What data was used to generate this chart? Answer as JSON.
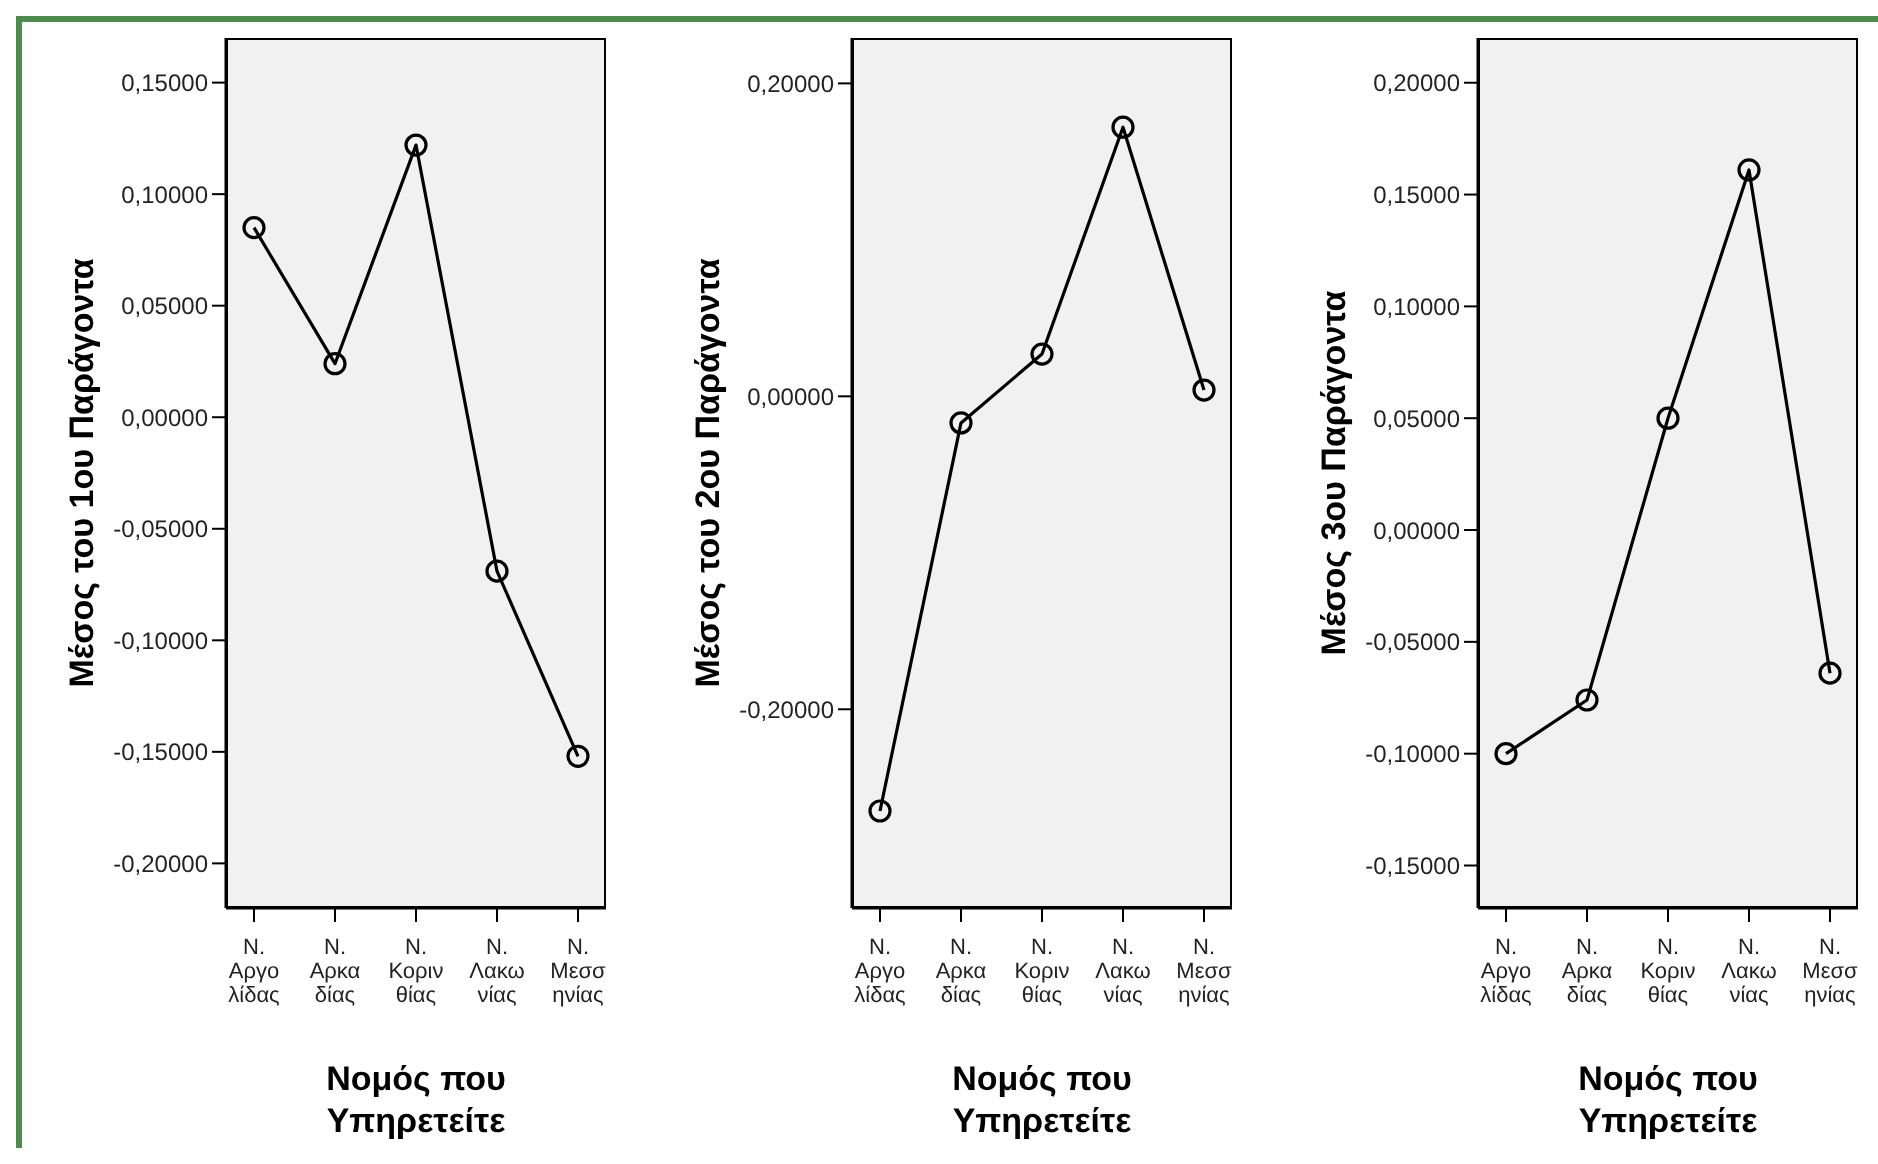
{
  "chart_data": [
    {
      "type": "line",
      "categories": [
        "Ν.\nΑργο\nλίδας",
        "Ν.\nΑρκα\nδίας",
        "Ν.\nΚοριν\nθίας",
        "Ν.\nΛακω\nνίας",
        "Ν.\nΜεσσ\nηνίας"
      ],
      "xlabel": "Νομός που Υπηρετείτε",
      "ylabel": "Μέσος του 1ου Παράγοντα",
      "series": [
        {
          "color": "#000000",
          "values": [
            0.085,
            0.024,
            0.122,
            -0.069,
            -0.152
          ]
        }
      ],
      "ylim": [
        -0.22,
        0.17
      ],
      "yticks": [
        {
          "value": -0.2,
          "label": "-0,20000"
        },
        {
          "value": -0.15,
          "label": "-0,15000"
        },
        {
          "value": -0.1,
          "label": "-0,10000"
        },
        {
          "value": -0.05,
          "label": "-0,05000"
        },
        {
          "value": 0,
          "label": "0,00000"
        },
        {
          "value": 0.05,
          "label": "0,05000"
        },
        {
          "value": 0.1,
          "label": "0,10000"
        },
        {
          "value": 0.15,
          "label": "0,15000"
        }
      ],
      "marker": "circle",
      "grid": false,
      "legend": false
    },
    {
      "type": "line",
      "categories": [
        "Ν.\nΑργο\nλίδας",
        "Ν.\nΑρκα\nδίας",
        "Ν.\nΚοριν\nθίας",
        "Ν.\nΛακω\nνίας",
        "Ν.\nΜεσσ\nηνίας"
      ],
      "xlabel": "Νομός που Υπηρετείτε",
      "ylabel": "Μέσος του 2ου Παράγοντα",
      "series": [
        {
          "color": "#000000",
          "values": [
            -0.265,
            -0.017,
            0.027,
            0.172,
            0.004
          ]
        }
      ],
      "ylim": [
        -0.327,
        0.229
      ],
      "yticks": [
        {
          "value": -0.2,
          "label": "-0,20000"
        },
        {
          "value": 0,
          "label": "0,00000"
        },
        {
          "value": 0.2,
          "label": "0,20000"
        }
      ],
      "marker": "circle",
      "grid": false,
      "legend": false
    },
    {
      "type": "line",
      "categories": [
        "Ν.\nΑργο\nλίδας",
        "Ν.\nΑρκα\nδίας",
        "Ν.\nΚοριν\nθίας",
        "Ν.\nΛακω\nνίας",
        "Ν.\nΜεσσ\nηνίας"
      ],
      "xlabel": "Νομός που Υπηρετείτε",
      "ylabel": "Μέσος 3ου Παράγοντα",
      "series": [
        {
          "color": "#000000",
          "values": [
            -0.1,
            -0.076,
            0.05,
            0.161,
            -0.064
          ]
        }
      ],
      "ylim": [
        -0.169,
        0.22
      ],
      "yticks": [
        {
          "value": -0.15,
          "label": "-0,15000"
        },
        {
          "value": -0.1,
          "label": "-0,10000"
        },
        {
          "value": -0.05,
          "label": "-0,05000"
        },
        {
          "value": 0,
          "label": "0,00000"
        },
        {
          "value": 0.05,
          "label": "0,05000"
        },
        {
          "value": 0.1,
          "label": "0,10000"
        },
        {
          "value": 0.15,
          "label": "0,15000"
        },
        {
          "value": 0.2,
          "label": "0,20000"
        }
      ],
      "marker": "circle",
      "grid": false,
      "legend": false
    }
  ]
}
